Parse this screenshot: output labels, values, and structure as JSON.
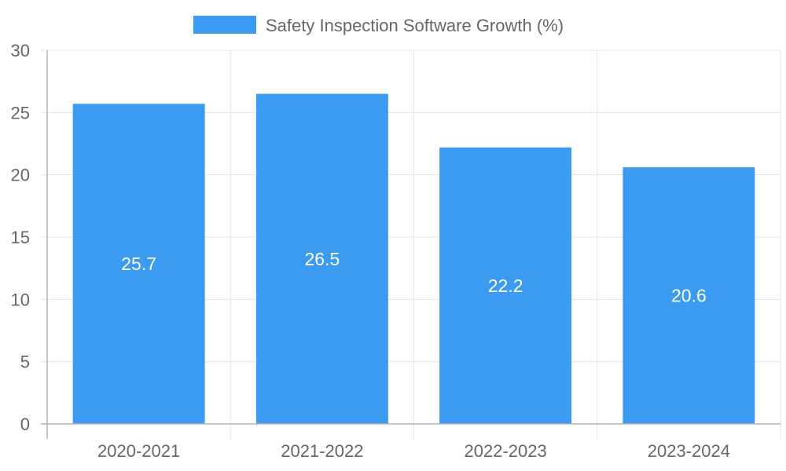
{
  "chart_data": {
    "type": "bar",
    "title": "",
    "xlabel": "",
    "ylabel": "",
    "categories": [
      "2020-2021",
      "2021-2022",
      "2022-2023",
      "2023-2024"
    ],
    "series": [
      {
        "name": "Safety Inspection Software Growth (%)",
        "values": [
          25.7,
          26.5,
          22.2,
          20.6
        ],
        "color": "#3a9bf0"
      }
    ],
    "ylim": [
      0,
      30
    ],
    "yticks": [
      "0",
      "5",
      "10",
      "15",
      "20",
      "25",
      "30"
    ],
    "data_labels": [
      "25.7",
      "26.5",
      "22.2",
      "20.6"
    ],
    "legend": "top-center",
    "grid": true,
    "colors": {
      "bar": "#3a9bf0",
      "grid": "#e5e5e5",
      "axis": "#b3b3b3",
      "text": "#666666",
      "data_label": "#ffffff"
    }
  }
}
